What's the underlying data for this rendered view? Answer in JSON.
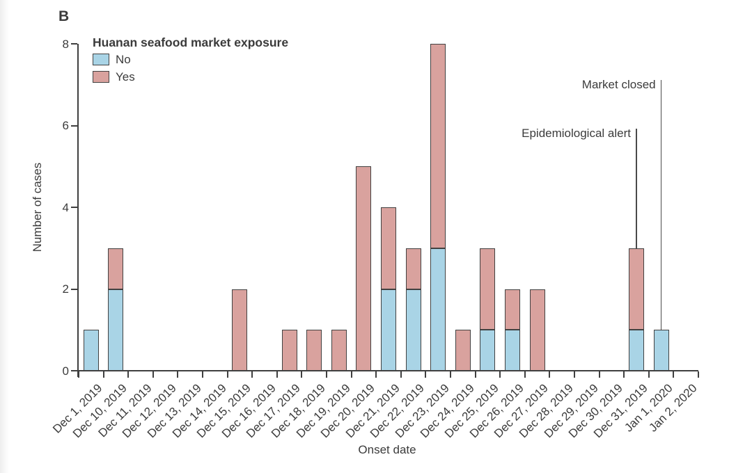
{
  "panel_label": "B",
  "legend": {
    "title": "Huanan seafood market exposure",
    "items": [
      {
        "label": "No",
        "color": "#a9d4e6"
      },
      {
        "label": "Yes",
        "color": "#d9a29e"
      }
    ]
  },
  "chart_data": {
    "type": "bar",
    "stacked": true,
    "xlabel": "Onset date",
    "ylabel": "Number of cases",
    "ylim": [
      0,
      8
    ],
    "yticks": [
      0,
      2,
      4,
      6,
      8
    ],
    "grid": false,
    "legend_position": "top-left",
    "categories": [
      "Dec 1, 2019",
      "Dec 10, 2019",
      "Dec 11, 2019",
      "Dec 12, 2019",
      "Dec 13, 2019",
      "Dec 14, 2019",
      "Dec 15, 2019",
      "Dec 16, 2019",
      "Dec 17, 2019",
      "Dec 18, 2019",
      "Dec 19, 2019",
      "Dec 20, 2019",
      "Dec 21, 2019",
      "Dec 22, 2019",
      "Dec 23, 2019",
      "Dec 24, 2019",
      "Dec 25, 2019",
      "Dec 26, 2019",
      "Dec 27, 2019",
      "Dec 28, 2019",
      "Dec 29, 2019",
      "Dec 30, 2019",
      "Dec 31, 2019",
      "Jan 1, 2020",
      "Jan 2, 2020"
    ],
    "series": [
      {
        "name": "No",
        "color": "#a9d4e6",
        "values": [
          1,
          2,
          0,
          0,
          0,
          0,
          0,
          0,
          0,
          0,
          0,
          0,
          2,
          2,
          3,
          0,
          1,
          1,
          0,
          0,
          0,
          0,
          1,
          1,
          0
        ]
      },
      {
        "name": "Yes",
        "color": "#d9a29e",
        "values": [
          0,
          1,
          0,
          0,
          0,
          0,
          2,
          0,
          1,
          1,
          1,
          5,
          2,
          1,
          5,
          1,
          2,
          1,
          2,
          0,
          0,
          0,
          2,
          0,
          0
        ]
      }
    ],
    "annotations": [
      {
        "label": "Epidemiological alert",
        "category": "Dec 31, 2019",
        "category_index": 22
      },
      {
        "label": "Market closed",
        "category": "Jan 1, 2020",
        "category_index": 23
      }
    ]
  }
}
